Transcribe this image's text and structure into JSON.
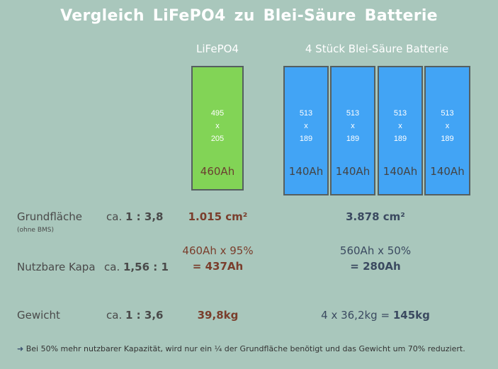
{
  "title": "Vergleich  LiFePO4  zu  Blei-Säure Batterie",
  "columns": {
    "lifepo4": "LiFePO4",
    "lead": "4 Stück Blei-Säure Batterie"
  },
  "batteries": {
    "lifepo4": {
      "dims": [
        "495",
        "x",
        "205"
      ],
      "capacity": "460Ah",
      "color": "#82d456"
    },
    "lead": [
      {
        "dims": [
          "513",
          "x",
          "189"
        ],
        "capacity": "140Ah"
      },
      {
        "dims": [
          "513",
          "x",
          "189"
        ],
        "capacity": "140Ah"
      },
      {
        "dims": [
          "513",
          "x",
          "189"
        ],
        "capacity": "140Ah"
      },
      {
        "dims": [
          "513",
          "x",
          "189"
        ],
        "capacity": "140Ah"
      }
    ],
    "lead_color": "#42a4f5"
  },
  "rows": {
    "grundflaeche": {
      "label": "Grundfläche",
      "note": "(ohne BMS)",
      "ratio_prefix": "ca.",
      "ratio": "1 : 3,8",
      "lifepo4": "1.015 cm²",
      "lead": "3.878 cm²"
    },
    "kapa": {
      "label": "Nutzbare Kapa",
      "ratio_prefix": "ca.",
      "ratio": "1,56 : 1",
      "lifepo4_line1": "460Ah x 95%",
      "lifepo4_line2": "= 437Ah",
      "lead_line1": "560Ah x 50%",
      "lead_line2": "= 280Ah"
    },
    "gewicht": {
      "label": "Gewicht",
      "ratio_prefix": "ca.",
      "ratio": "1 : 3,6",
      "lifepo4": "39,8kg",
      "lead_prefix": "4 x 36,2kg =",
      "lead_total": "145kg"
    }
  },
  "footer": {
    "arrow_icon": "right-arrow-icon",
    "text": "Bei 50% mehr nutzbarer Kapazität, wird nur ein ¼ der Grundfläche benötigt und das Gewicht um 70% reduziert."
  }
}
